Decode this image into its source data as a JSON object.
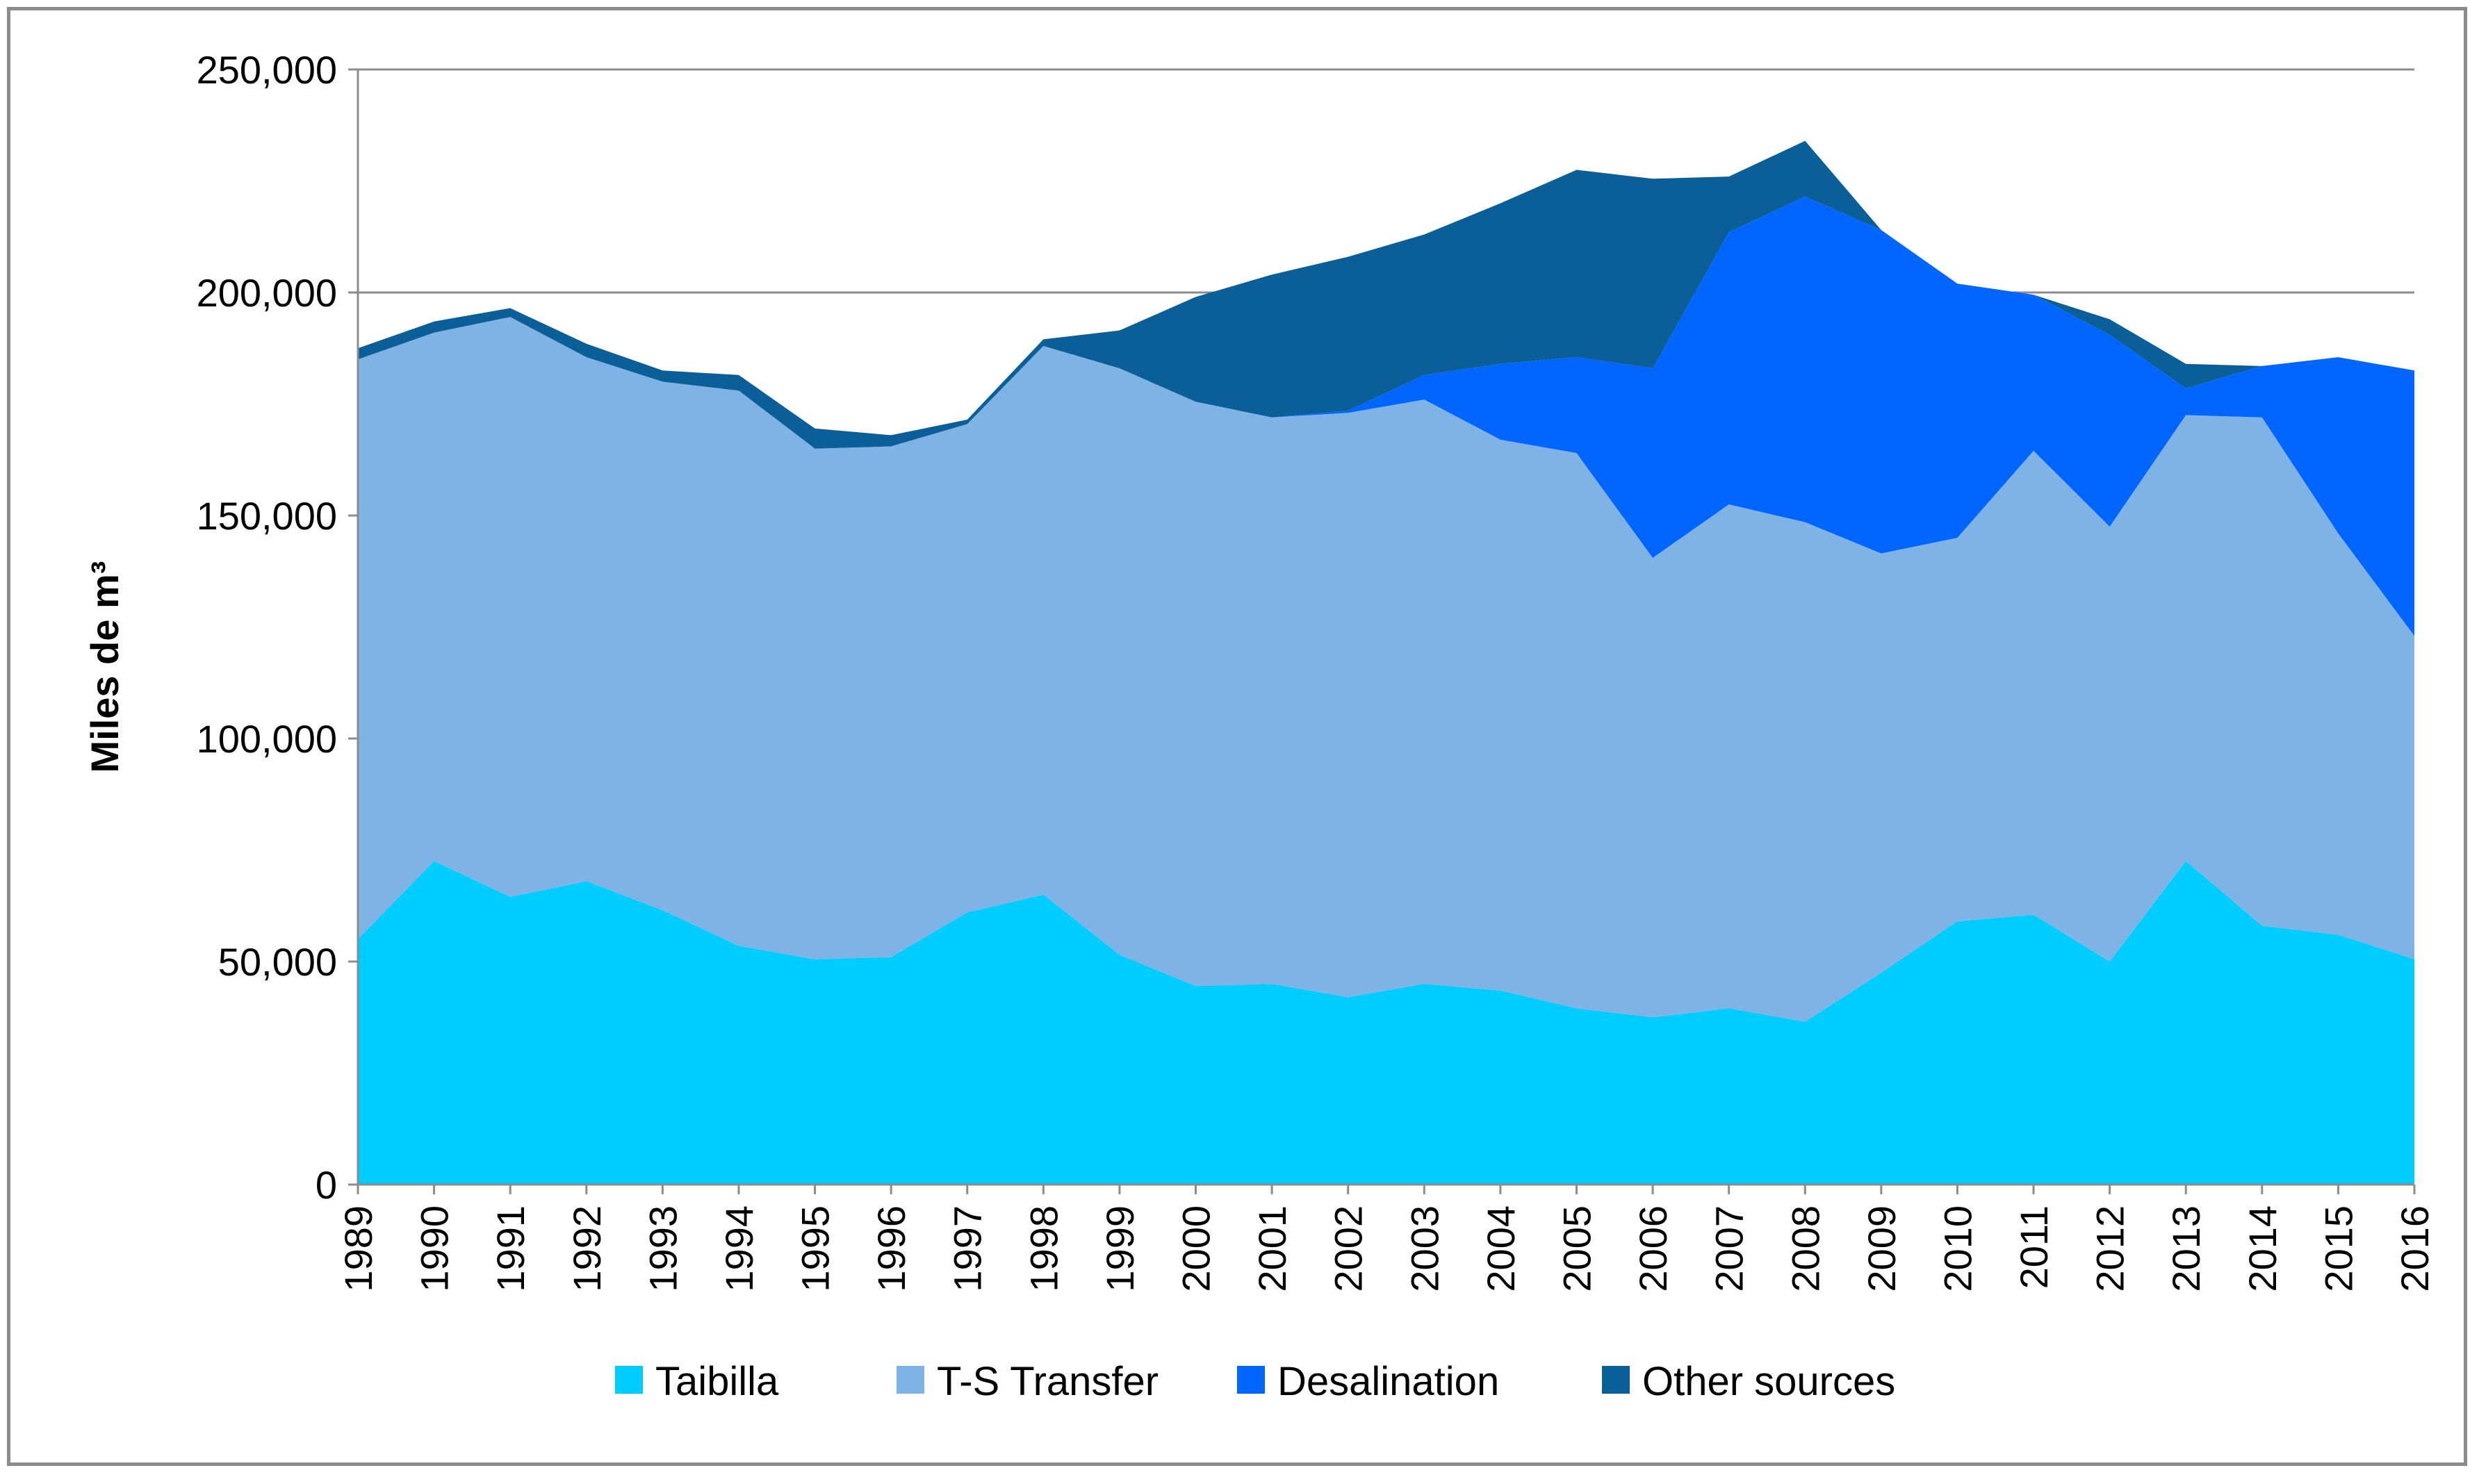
{
  "chart_data": {
    "type": "area",
    "stacked": true,
    "title": "",
    "xlabel": "",
    "ylabel": "Miles de m³",
    "ylim": [
      0,
      250000
    ],
    "yticks": [
      0,
      50000,
      100000,
      150000,
      200000,
      250000
    ],
    "ytick_labels": [
      "0",
      "50,000",
      "100,000",
      "150,000",
      "200,000",
      "250,000"
    ],
    "grid": true,
    "legend_position": "bottom",
    "categories": [
      "1989",
      "1990",
      "1991",
      "1992",
      "1993",
      "1994",
      "1995",
      "1996",
      "1997",
      "1998",
      "1999",
      "2000",
      "2001",
      "2002",
      "2003",
      "2004",
      "2005",
      "2006",
      "2007",
      "2008",
      "2009",
      "2010",
      "2011",
      "2012",
      "2013",
      "2014",
      "2015",
      "2016"
    ],
    "series": [
      {
        "name": "Taibilla",
        "color": "#00cdff",
        "values": [
          55000,
          72500,
          64500,
          68000,
          61500,
          53500,
          50500,
          51000,
          61000,
          65000,
          51500,
          44500,
          45000,
          42000,
          45000,
          43500,
          39500,
          37500,
          39500,
          36500,
          47500,
          59000,
          60500,
          50000,
          72500,
          58000,
          56000,
          50500
        ]
      },
      {
        "name": "T-S Transfer",
        "color": "#7fb2e5",
        "values": [
          130000,
          118500,
          130000,
          117500,
          118500,
          124500,
          114500,
          114500,
          109500,
          123000,
          131500,
          131000,
          127000,
          131000,
          131000,
          123500,
          124500,
          103000,
          113000,
          112000,
          94000,
          86000,
          104000,
          97500,
          100000,
          114000,
          90000,
          72500
        ]
      },
      {
        "name": "Desalination",
        "color": "#0066ff",
        "values": [
          0,
          0,
          0,
          0,
          0,
          0,
          0,
          0,
          0,
          0,
          0,
          0,
          0,
          500,
          5500,
          17000,
          21500,
          42500,
          61000,
          73000,
          72500,
          57000,
          35000,
          43000,
          6000,
          11500,
          39500,
          59500
        ]
      },
      {
        "name": "Other sources",
        "color": "#0b5f98",
        "values": [
          2500,
          2500,
          2000,
          3000,
          2500,
          3500,
          4500,
          2500,
          1000,
          1500,
          8500,
          23500,
          32000,
          34500,
          31500,
          36000,
          42000,
          42500,
          12500,
          12500,
          0,
          0,
          0,
          3500,
          5500,
          0,
          0,
          0
        ]
      }
    ]
  }
}
